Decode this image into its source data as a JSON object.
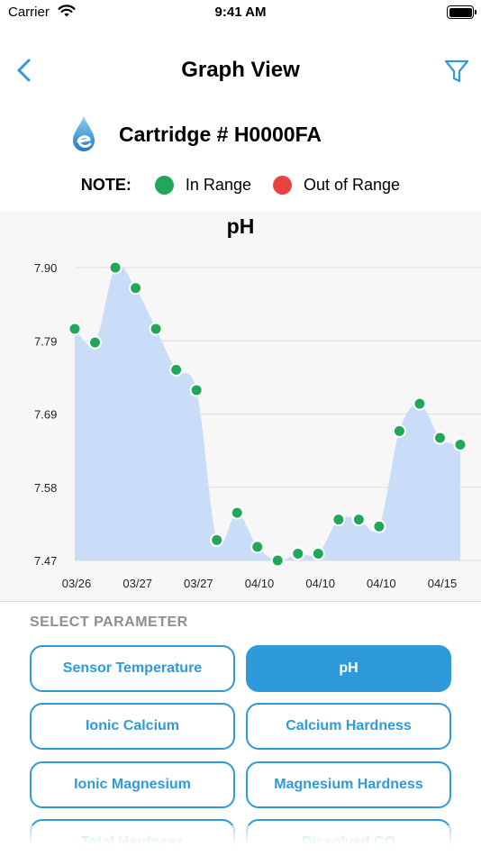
{
  "status": {
    "carrier": "Carrier",
    "time": "9:41 AM"
  },
  "nav": {
    "title": "Graph View",
    "back_icon": "chevron-left-icon",
    "filter_icon": "funnel-icon"
  },
  "cartridge": {
    "title": "Cartridge # H0000FA"
  },
  "legend": {
    "note": "NOTE:",
    "in_range": "In Range",
    "out_of_range": "Out of Range"
  },
  "colors": {
    "accent": "#2f9ad9",
    "in_range": "#22a75a",
    "out_of_range": "#e74343",
    "area_fill": "#c9ddf9"
  },
  "params": {
    "section_label": "SELECT PARAMETER",
    "buttons": [
      {
        "label": "Sensor Temperature",
        "active": false
      },
      {
        "label": "pH",
        "active": true
      },
      {
        "label": "Ionic Calcium",
        "active": false
      },
      {
        "label": "Calcium Hardness",
        "active": false
      },
      {
        "label": "Ionic Magnesium",
        "active": false
      },
      {
        "label": "Magnesium Hardness",
        "active": false
      },
      {
        "label": "Total Hardness",
        "active": false
      },
      {
        "label": "Dissolved CO",
        "active": false
      }
    ]
  },
  "chart_data": {
    "type": "area",
    "title": "pH",
    "yticks": [
      "7.90",
      "7.79",
      "7.69",
      "7.58",
      "7.47"
    ],
    "ylim": [
      7.47,
      7.9
    ],
    "xticks": [
      "03/26",
      "03/27",
      "03/27",
      "04/10",
      "04/10",
      "04/10",
      "04/15"
    ],
    "grid": true,
    "values": [
      7.81,
      7.79,
      7.9,
      7.87,
      7.81,
      7.75,
      7.72,
      7.5,
      7.54,
      7.49,
      7.47,
      7.48,
      7.48,
      7.53,
      7.53,
      7.52,
      7.66,
      7.7,
      7.65,
      7.64
    ],
    "status": [
      "in",
      "in",
      "in",
      "in",
      "in",
      "in",
      "in",
      "in",
      "in",
      "in",
      "in",
      "in",
      "in",
      "in",
      "in",
      "in",
      "in",
      "in",
      "in",
      "in"
    ]
  }
}
